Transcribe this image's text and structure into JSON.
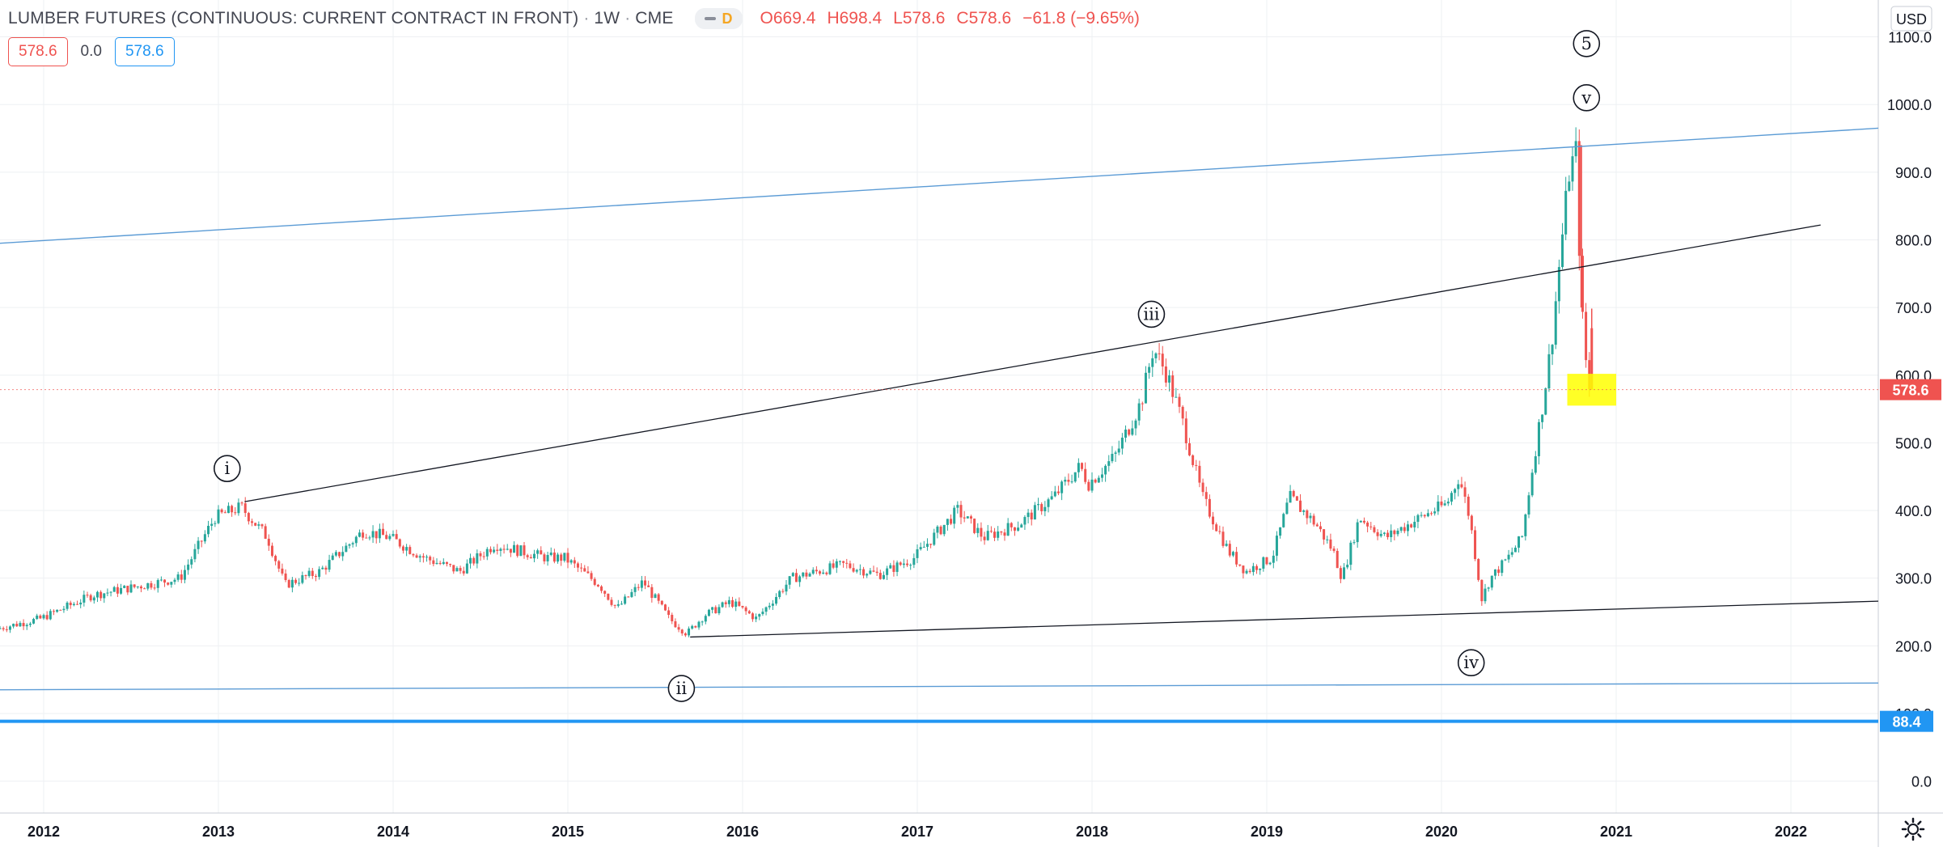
{
  "legend": {
    "title": "LUMBER FUTURES (CONTINUOUS: CURRENT CONTRACT IN FRONT)",
    "interval": "1W",
    "exchange": "CME",
    "pill_letter": "D",
    "open_key": "O",
    "open": "669.4",
    "high_key": "H",
    "high": "698.4",
    "low_key": "L",
    "low": "578.6",
    "close_key": "C",
    "close": "578.6",
    "change": "−61.8 (−9.65%)",
    "bid": "578.6",
    "spread": "0.0",
    "ask": "578.6"
  },
  "axis": {
    "currency": "USD",
    "current_price_label": "578.6",
    "level_label": "88.4"
  },
  "colors": {
    "up": "#26a69a",
    "down": "#ef5350",
    "channel": "#5b9bd5",
    "trendline": "#131722",
    "level": "#2196f3",
    "highlight": "#ffff00"
  },
  "chart_data": {
    "type": "candlestick",
    "title": "LUMBER FUTURES (CONTINUOUS: CURRENT CONTRACT IN FRONT)",
    "interval": "1W",
    "y_ticks": [
      "1100.0",
      "1000.0",
      "900.0",
      "800.0",
      "700.0",
      "600.0",
      "500.0",
      "400.0",
      "300.0",
      "200.0",
      "100.0",
      "0.0"
    ],
    "x_ticks": [
      "2012",
      "2013",
      "2014",
      "2015",
      "2016",
      "2017",
      "2018",
      "2019",
      "2020",
      "2021",
      "2022"
    ],
    "ylim": [
      -20,
      1130
    ],
    "xlim": [
      2011.75,
      2022.5
    ],
    "grid": true,
    "price_path": [
      [
        2011.75,
        225
      ],
      [
        2012.0,
        240
      ],
      [
        2012.3,
        275
      ],
      [
        2012.6,
        290
      ],
      [
        2012.8,
        300
      ],
      [
        2013.0,
        390
      ],
      [
        2013.15,
        405
      ],
      [
        2013.3,
        360
      ],
      [
        2013.4,
        290
      ],
      [
        2013.6,
        310
      ],
      [
        2013.85,
        370
      ],
      [
        2014.0,
        360
      ],
      [
        2014.2,
        330
      ],
      [
        2014.4,
        310
      ],
      [
        2014.6,
        350
      ],
      [
        2014.9,
        330
      ],
      [
        2015.0,
        330
      ],
      [
        2015.2,
        290
      ],
      [
        2015.3,
        255
      ],
      [
        2015.45,
        295
      ],
      [
        2015.6,
        240
      ],
      [
        2015.7,
        218
      ],
      [
        2015.8,
        245
      ],
      [
        2015.95,
        265
      ],
      [
        2016.1,
        240
      ],
      [
        2016.3,
        300
      ],
      [
        2016.6,
        320
      ],
      [
        2016.8,
        305
      ],
      [
        2017.0,
        330
      ],
      [
        2017.25,
        400
      ],
      [
        2017.4,
        360
      ],
      [
        2017.6,
        380
      ],
      [
        2017.8,
        420
      ],
      [
        2017.95,
        465
      ],
      [
        2018.0,
        440
      ],
      [
        2018.15,
        480
      ],
      [
        2018.3,
        560
      ],
      [
        2018.37,
        640
      ],
      [
        2018.45,
        600
      ],
      [
        2018.55,
        520
      ],
      [
        2018.65,
        420
      ],
      [
        2018.8,
        340
      ],
      [
        2018.9,
        310
      ],
      [
        2019.05,
        330
      ],
      [
        2019.15,
        420
      ],
      [
        2019.3,
        380
      ],
      [
        2019.4,
        340
      ],
      [
        2019.45,
        300
      ],
      [
        2019.55,
        390
      ],
      [
        2019.7,
        360
      ],
      [
        2019.9,
        390
      ],
      [
        2020.05,
        410
      ],
      [
        2020.12,
        450
      ],
      [
        2020.18,
        390
      ],
      [
        2020.25,
        270
      ],
      [
        2020.3,
        300
      ],
      [
        2020.4,
        330
      ],
      [
        2020.48,
        360
      ],
      [
        2020.55,
        480
      ],
      [
        2020.6,
        560
      ],
      [
        2020.65,
        650
      ],
      [
        2020.7,
        780
      ],
      [
        2020.75,
        900
      ],
      [
        2020.79,
        930
      ],
      [
        2020.82,
        700
      ],
      [
        2020.84,
        640
      ],
      [
        2020.86,
        578.6
      ]
    ],
    "last_bar": {
      "open": 669.4,
      "high": 698.4,
      "low": 578.6,
      "close": 578.6
    },
    "channel_lines": [
      {
        "from": [
          2011.75,
          795
        ],
        "to": [
          2022.5,
          965
        ]
      },
      {
        "from": [
          2011.75,
          135
        ],
        "to": [
          2022.5,
          145
        ]
      }
    ],
    "trend_lines": [
      {
        "from": [
          2013.15,
          413
        ],
        "to": [
          2022.17,
          822
        ]
      },
      {
        "from": [
          2015.7,
          213
        ],
        "to": [
          2022.5,
          266
        ]
      }
    ],
    "horizontal_levels": [
      88.4
    ],
    "last_price": 578.6,
    "highlight_box": {
      "x": [
        2020.72,
        2021.0
      ],
      "y": [
        555,
        602
      ]
    },
    "wave_labels": [
      {
        "text": "i",
        "x": 2013.05,
        "y": 462
      },
      {
        "text": "ii",
        "x": 2015.65,
        "y": 137
      },
      {
        "text": "iii",
        "x": 2018.34,
        "y": 690
      },
      {
        "text": "iv",
        "x": 2020.17,
        "y": 175
      },
      {
        "text": "v",
        "x": 2020.83,
        "y": 1010
      },
      {
        "text": "5",
        "x": 2020.83,
        "y": 1090
      }
    ]
  }
}
